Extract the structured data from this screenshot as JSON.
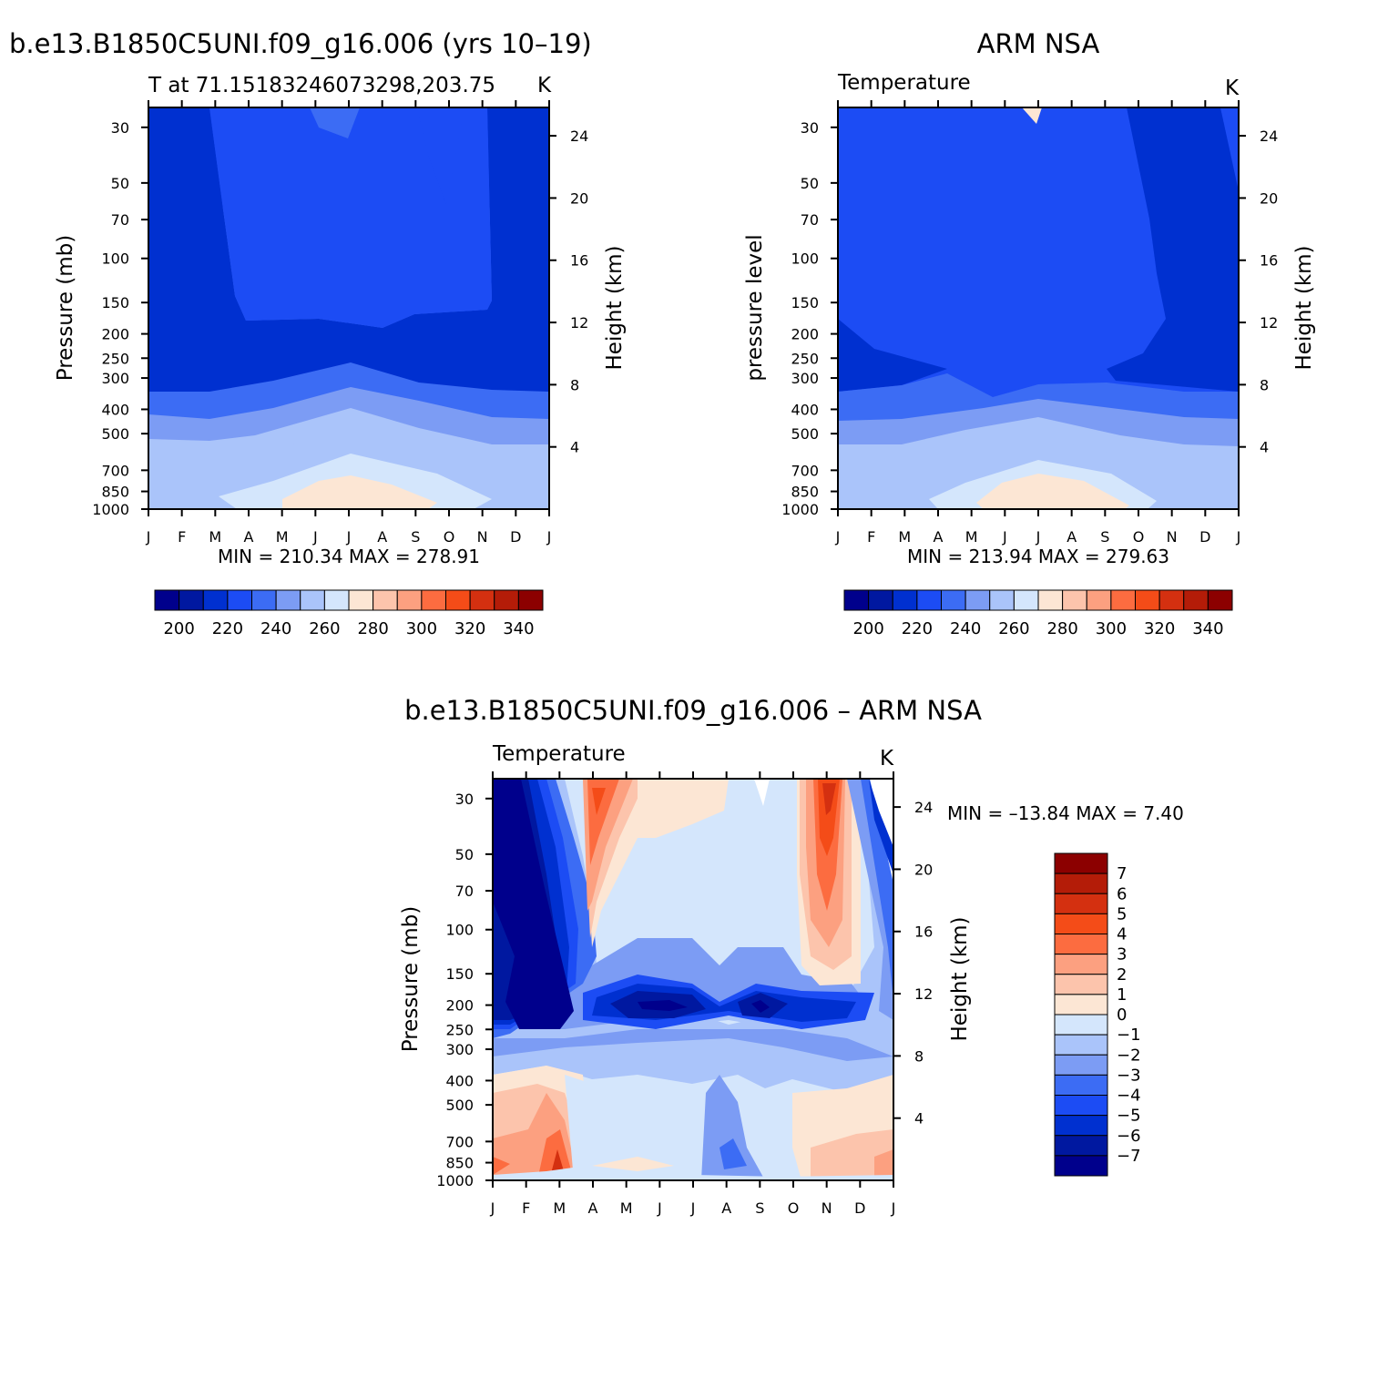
{
  "chart_data": [
    {
      "type": "contour",
      "title": "b.e13.B1850C5UNI.f09_g16.006 (yrs 10–19)",
      "subtitle": "T at 71.15183246073298,203.75",
      "units": "K",
      "ylabel": "Pressure (mb)",
      "y2label": "Height (km)",
      "x": [
        "J",
        "F",
        "M",
        "A",
        "M",
        "J",
        "J",
        "A",
        "S",
        "O",
        "N",
        "D",
        "J"
      ],
      "y_pressure": [
        30,
        50,
        70,
        100,
        150,
        200,
        250,
        300,
        400,
        500,
        700,
        850,
        1000
      ],
      "y2_height_km": [
        24,
        20,
        16,
        12,
        8,
        4
      ],
      "stats": "MIN =  210.34  MAX =  278.91",
      "colorbar": {
        "labels": [
          "200",
          "220",
          "240",
          "260",
          "280",
          "300",
          "320",
          "340"
        ],
        "colors": [
          "#00008c",
          "#0018a0",
          "#0030d0",
          "#1c4cf4",
          "#3c6cf4",
          "#7c9cf4",
          "#aac4fa",
          "#d4e6fc",
          "#fce6d4",
          "#fcc4ac",
          "#fca080",
          "#fc6c40",
          "#f44c18",
          "#d43010",
          "#b41c08",
          "#8c0000"
        ]
      }
    },
    {
      "type": "contour",
      "title": "ARM NSA",
      "subtitle": "Temperature",
      "units": "K",
      "ylabel": "pressure level",
      "y2label": "Height (km)",
      "x": [
        "J",
        "F",
        "M",
        "A",
        "M",
        "J",
        "J",
        "A",
        "S",
        "O",
        "N",
        "D",
        "J"
      ],
      "y_pressure": [
        30,
        50,
        70,
        100,
        150,
        200,
        250,
        300,
        400,
        500,
        700,
        850,
        1000
      ],
      "y2_height_km": [
        24,
        20,
        16,
        12,
        8,
        4
      ],
      "stats": "MIN =  213.94  MAX =  279.63",
      "colorbar": {
        "labels": [
          "200",
          "220",
          "240",
          "260",
          "280",
          "300",
          "320",
          "340"
        ],
        "colors": [
          "#00008c",
          "#0018a0",
          "#0030d0",
          "#1c4cf4",
          "#3c6cf4",
          "#7c9cf4",
          "#aac4fa",
          "#d4e6fc",
          "#fce6d4",
          "#fcc4ac",
          "#fca080",
          "#fc6c40",
          "#f44c18",
          "#d43010",
          "#b41c08",
          "#8c0000"
        ]
      }
    },
    {
      "type": "contour",
      "title": "b.e13.B1850C5UNI.f09_g16.006 – ARM NSA",
      "subtitle": "Temperature",
      "units": "K",
      "ylabel": "Pressure (mb)",
      "y2label": "Height (km)",
      "x": [
        "J",
        "F",
        "M",
        "A",
        "M",
        "J",
        "J",
        "A",
        "S",
        "O",
        "N",
        "D",
        "J"
      ],
      "y_pressure": [
        30,
        50,
        70,
        100,
        150,
        200,
        250,
        300,
        400,
        500,
        700,
        850,
        1000
      ],
      "y2_height_km": [
        24,
        20,
        16,
        12,
        8,
        4
      ],
      "stats": "MIN = –13.84  MAX =    7.40",
      "colorbar": {
        "labels": [
          "7",
          "6",
          "5",
          "4",
          "3",
          "2",
          "1",
          "0",
          "−1",
          "−2",
          "−3",
          "−4",
          "−5",
          "−6",
          "−7"
        ],
        "colors": [
          "#8c0000",
          "#b41c08",
          "#d43010",
          "#f44c18",
          "#fc6c40",
          "#fca080",
          "#fcc4ac",
          "#fce6d4",
          "#d4e6fc",
          "#aac4fa",
          "#7c9cf4",
          "#3c6cf4",
          "#1c4cf4",
          "#0030d0",
          "#0018a0",
          "#00008c"
        ]
      }
    }
  ]
}
